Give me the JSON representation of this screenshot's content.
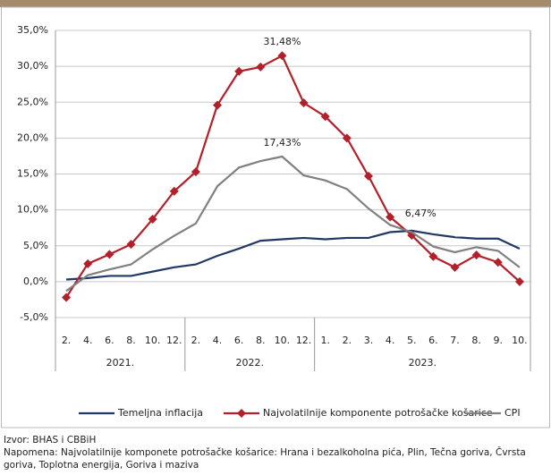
{
  "chart_data": {
    "type": "line",
    "categories": [
      "2.",
      "4.",
      "6.",
      "8.",
      "10.",
      "12.",
      "2.",
      "4.",
      "6.",
      "8.",
      "10.",
      "12.",
      "1.",
      "2.",
      "3.",
      "4.",
      "5.",
      "6.",
      "7.",
      "8.",
      "9.",
      "10."
    ],
    "groups": [
      {
        "label": "2021.",
        "span": 6
      },
      {
        "label": "2022.",
        "span": 6
      },
      {
        "label": "2023.",
        "span": 10
      }
    ],
    "series": [
      {
        "name": "Temeljna inflacija",
        "color": "#1f3864",
        "marker": "none",
        "values": [
          0.3,
          0.5,
          0.8,
          0.8,
          1.4,
          2.0,
          2.4,
          3.6,
          4.6,
          5.7,
          5.9,
          6.1,
          5.9,
          6.1,
          6.1,
          6.9,
          7.1,
          6.6,
          6.2,
          6.0,
          6.0,
          4.6
        ]
      },
      {
        "name": "Najvolatilnije komponente potrošačke košarice",
        "color": "#b3202a",
        "marker": "diamond",
        "values": [
          -2.2,
          2.5,
          3.8,
          5.2,
          8.7,
          12.6,
          15.3,
          24.6,
          29.3,
          29.9,
          31.48,
          24.9,
          23.0,
          20.0,
          14.7,
          9.0,
          6.47,
          3.5,
          2.0,
          3.7,
          2.7,
          0.0
        ],
        "value_labels": [
          null,
          null,
          null,
          null,
          null,
          null,
          null,
          null,
          null,
          null,
          "31,48%",
          null,
          null,
          null,
          null,
          null,
          "6,47%",
          null,
          null,
          null,
          null,
          null
        ]
      },
      {
        "name": "CPI",
        "color": "#808080",
        "marker": "none",
        "values": [
          -1.3,
          0.9,
          1.7,
          2.4,
          4.5,
          6.4,
          8.1,
          13.3,
          15.9,
          16.8,
          17.43,
          14.8,
          14.1,
          12.9,
          10.2,
          7.9,
          6.9,
          4.9,
          4.1,
          4.8,
          4.3,
          2.0
        ],
        "value_labels": [
          null,
          null,
          null,
          null,
          null,
          null,
          null,
          null,
          null,
          null,
          "17,43%",
          null,
          null,
          null,
          null,
          null,
          null,
          null,
          null,
          null,
          null,
          null
        ]
      }
    ],
    "ylim": [
      -5,
      35
    ],
    "yticks": [
      {
        "value": -5,
        "label": "-5,0%"
      },
      {
        "value": 0,
        "label": "0,0%"
      },
      {
        "value": 5,
        "label": "5,0%"
      },
      {
        "value": 10,
        "label": "10,0%"
      },
      {
        "value": 15,
        "label": "15,0%"
      },
      {
        "value": 20,
        "label": "20,0%"
      },
      {
        "value": 25,
        "label": "25,0%"
      },
      {
        "value": 30,
        "label": "30,0%"
      },
      {
        "value": 35,
        "label": "35,0%"
      }
    ],
    "grid": true,
    "legend": "bottom"
  },
  "notes": {
    "source": "Izvor: BHAS i CBBiH",
    "remark": "Napomena: Najvolatilnije komponete potrošačke košarice: Hrana i bezalkoholna pića, Plin, Tečna goriva, Čvrsta goriva, Toplotna energija, Goriva i maziva"
  }
}
